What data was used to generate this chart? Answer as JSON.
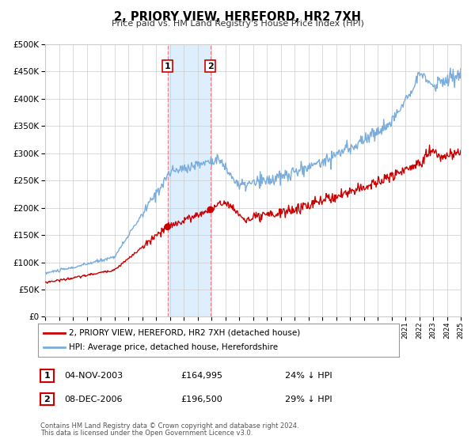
{
  "title": "2, PRIORY VIEW, HEREFORD, HR2 7XH",
  "subtitle": "Price paid vs. HM Land Registry's House Price Index (HPI)",
  "legend_label_red": "2, PRIORY VIEW, HEREFORD, HR2 7XH (detached house)",
  "legend_label_blue": "HPI: Average price, detached house, Herefordshire",
  "transaction1_label": "1",
  "transaction1_date": "04-NOV-2003",
  "transaction1_price": "£164,995",
  "transaction1_hpi": "24% ↓ HPI",
  "transaction1_year": 2003.84,
  "transaction1_value": 164995,
  "transaction2_label": "2",
  "transaction2_date": "08-DEC-2006",
  "transaction2_price": "£196,500",
  "transaction2_hpi": "29% ↓ HPI",
  "transaction2_year": 2006.93,
  "transaction2_value": 196500,
  "footnote_line1": "Contains HM Land Registry data © Crown copyright and database right 2024.",
  "footnote_line2": "This data is licensed under the Open Government Licence v3.0.",
  "ylim": [
    0,
    500000
  ],
  "xlim_start": 1995.0,
  "xlim_end": 2025.0,
  "red_color": "#cc0000",
  "blue_color": "#7aaddb",
  "shaded_color": "#ddeeff",
  "grid_color": "#cccccc",
  "background_color": "#ffffff",
  "dashed_color": "#ee8888"
}
